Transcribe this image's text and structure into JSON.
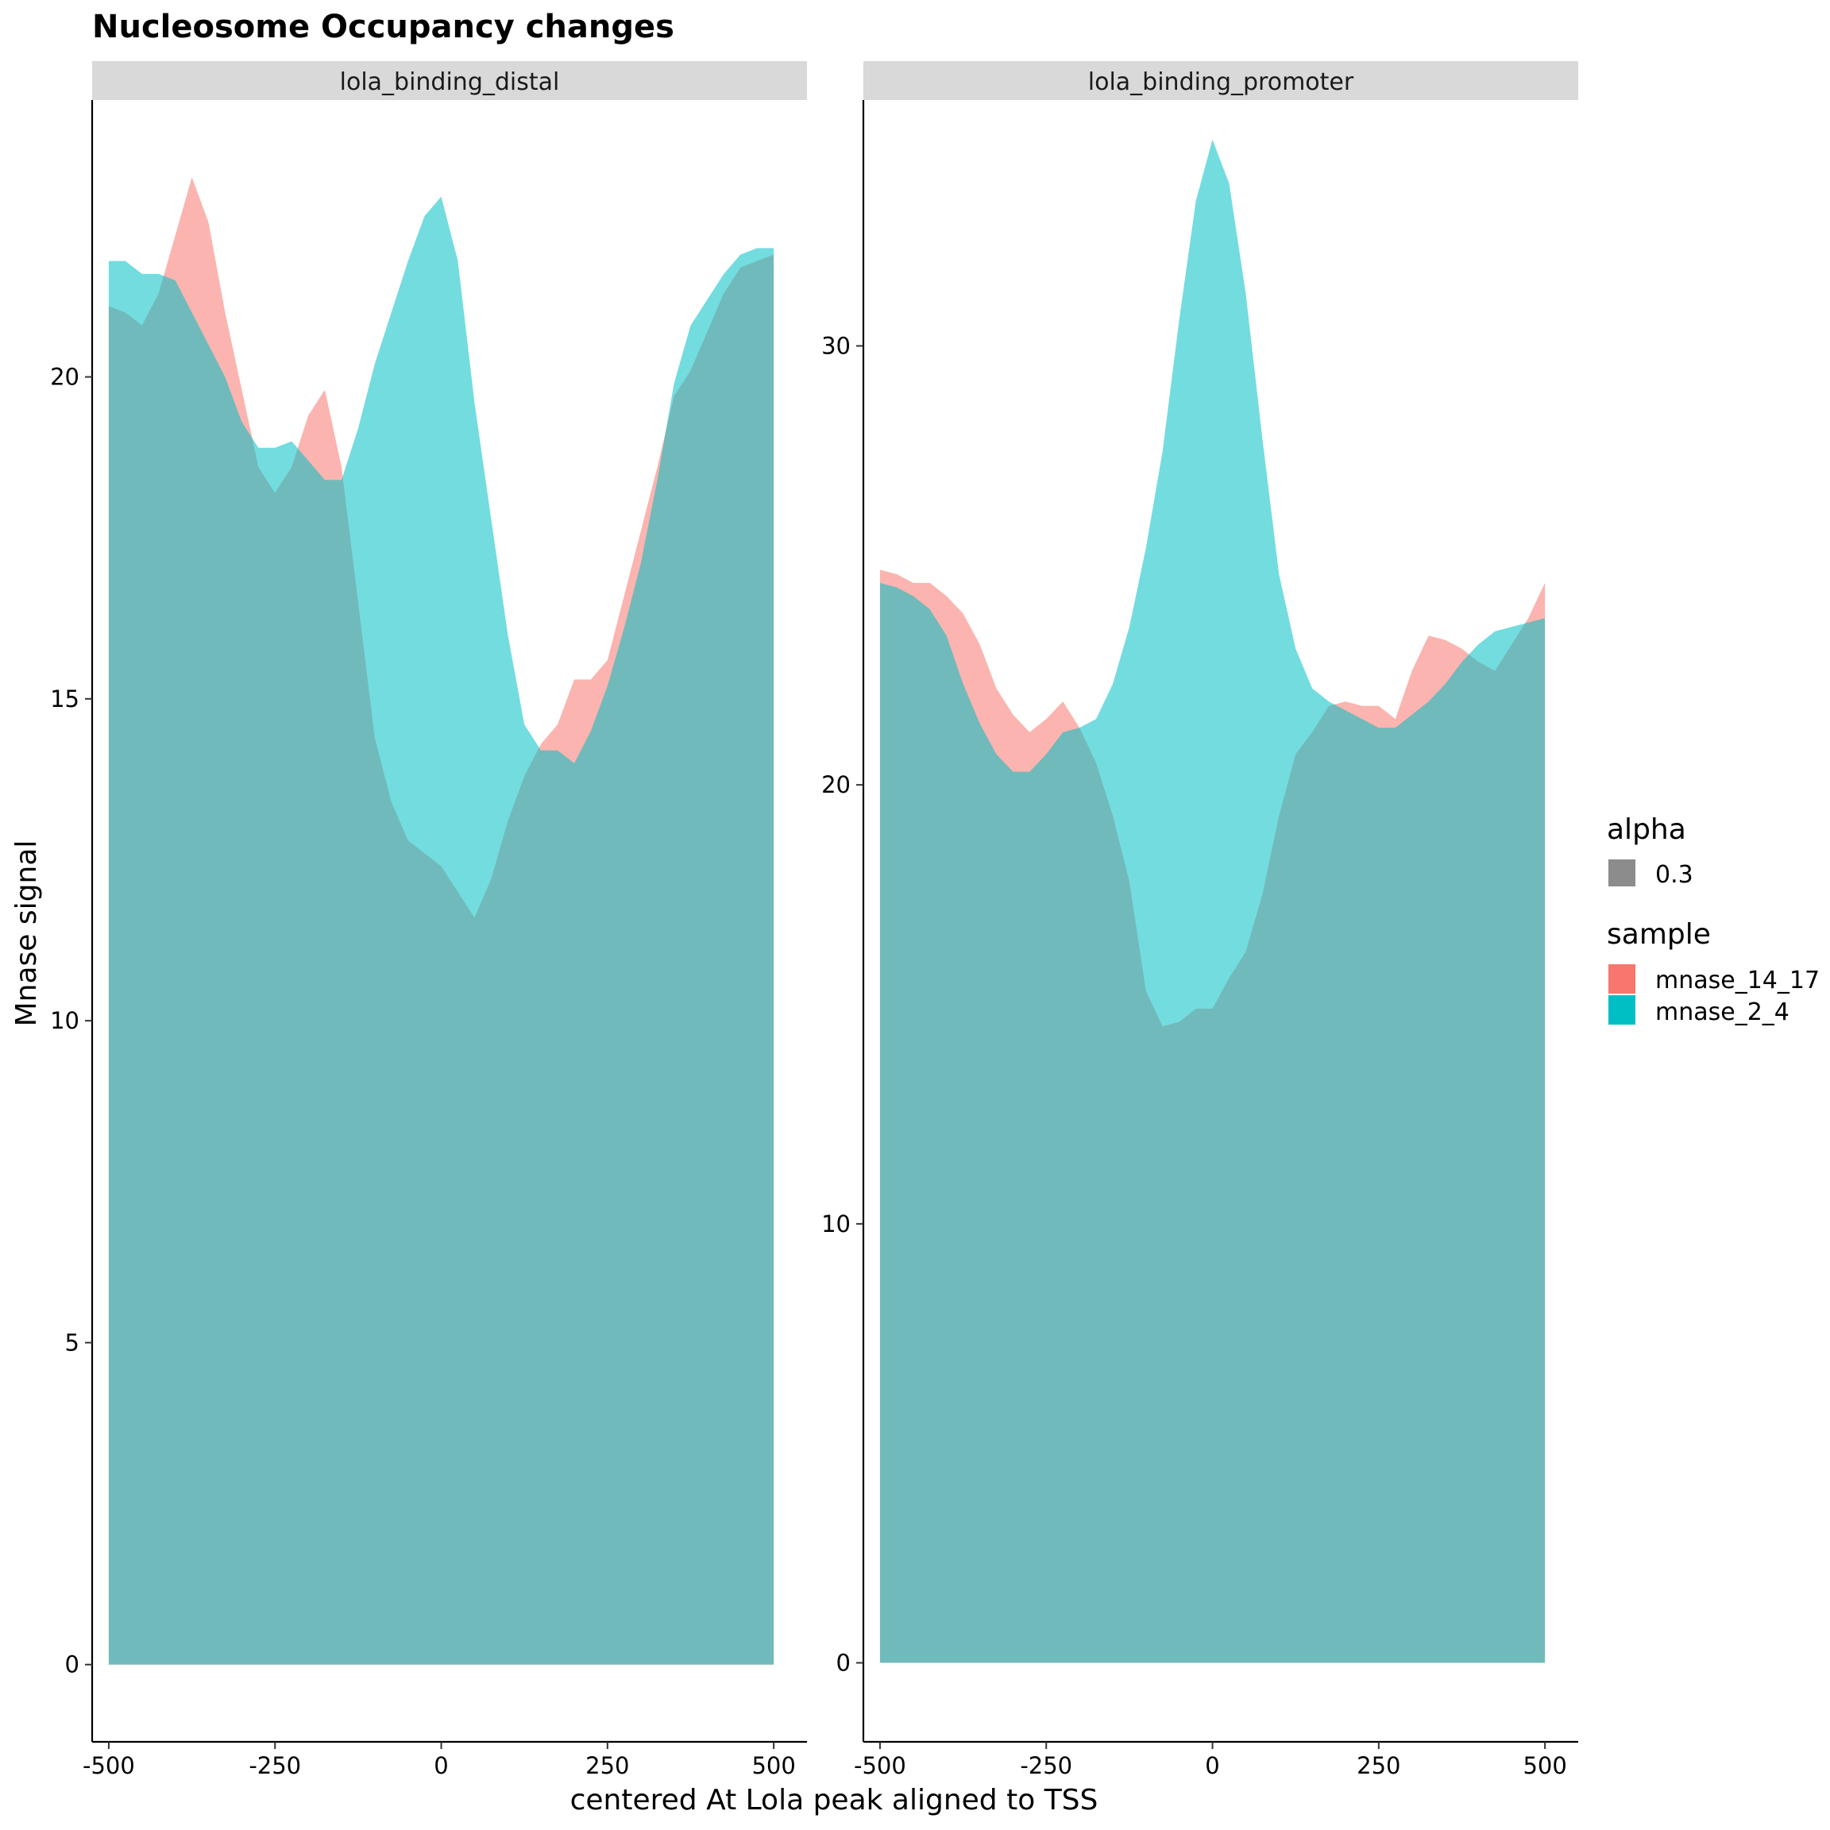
{
  "chart_data": {
    "type": "area",
    "title": "Nucleosome Occupancy changes",
    "xlabel": "centered At Lola peak aligned to TSS",
    "ylabel": "Mnase signal",
    "x_ticks": [
      "-500",
      "-250",
      "0",
      "250",
      "500"
    ],
    "x_tick_values": [
      -500,
      -250,
      0,
      250,
      500
    ],
    "grid": false,
    "legend_position": "right",
    "legend": {
      "alpha": {
        "title": "alpha",
        "entries": [
          {
            "label": "0.3",
            "color": "#8C8C8C"
          }
        ]
      },
      "sample": {
        "title": "sample",
        "entries": [
          {
            "label": "mnase_14_17",
            "color": "#F8766D"
          },
          {
            "label": "mnase_2_4",
            "color": "#00BFC4"
          }
        ]
      }
    },
    "panels": [
      {
        "strip": "lola_binding_distal",
        "xlim": [
          -525,
          550
        ],
        "ylim": [
          -1.2,
          24.3
        ],
        "y_ticks": [
          "0",
          "5",
          "10",
          "15",
          "20"
        ],
        "y_tick_values": [
          0,
          5,
          10,
          15,
          20
        ],
        "series": [
          {
            "name": "mnase_14_17",
            "color": "#F8766D",
            "x": [
              -500,
              -475,
              -450,
              -425,
              -400,
              -375,
              -350,
              -325,
              -300,
              -275,
              -250,
              -225,
              -200,
              -175,
              -150,
              -125,
              -100,
              -75,
              -50,
              -25,
              0,
              25,
              50,
              75,
              100,
              125,
              150,
              175,
              200,
              225,
              250,
              275,
              300,
              325,
              350,
              375,
              400,
              425,
              450,
              475,
              500
            ],
            "y": [
              21.1,
              21.0,
              20.8,
              21.3,
              22.2,
              23.1,
              22.4,
              21.0,
              19.8,
              18.6,
              18.2,
              18.6,
              19.4,
              19.8,
              18.6,
              16.5,
              14.4,
              13.4,
              12.8,
              12.6,
              12.4,
              12.0,
              11.6,
              12.2,
              13.1,
              13.8,
              14.3,
              14.6,
              15.3,
              15.3,
              15.6,
              16.6,
              17.6,
              18.6,
              19.7,
              20.1,
              20.7,
              21.3,
              21.7,
              21.8,
              21.9
            ]
          },
          {
            "name": "mnase_2_4",
            "color": "#00BFC4",
            "x": [
              -500,
              -475,
              -450,
              -425,
              -400,
              -375,
              -350,
              -325,
              -300,
              -275,
              -250,
              -225,
              -200,
              -175,
              -150,
              -125,
              -100,
              -75,
              -50,
              -25,
              0,
              25,
              50,
              75,
              100,
              125,
              150,
              175,
              200,
              225,
              250,
              275,
              300,
              325,
              350,
              375,
              400,
              425,
              450,
              475,
              500
            ],
            "y": [
              21.8,
              21.8,
              21.6,
              21.6,
              21.5,
              21.0,
              20.5,
              20.0,
              19.3,
              18.9,
              18.9,
              19.0,
              18.7,
              18.4,
              18.4,
              19.2,
              20.2,
              21.0,
              21.8,
              22.5,
              22.8,
              21.8,
              19.6,
              17.8,
              16.0,
              14.6,
              14.2,
              14.2,
              14.0,
              14.5,
              15.2,
              16.1,
              17.1,
              18.4,
              19.9,
              20.8,
              21.2,
              21.6,
              21.9,
              22.0,
              22.0
            ]
          }
        ]
      },
      {
        "strip": "lola_binding_promoter",
        "xlim": [
          -525,
          550
        ],
        "ylim": [
          -1.8,
          35.6
        ],
        "y_ticks": [
          "0",
          "10",
          "20",
          "30"
        ],
        "y_tick_values": [
          0,
          10,
          20,
          30
        ],
        "series": [
          {
            "name": "mnase_14_17",
            "color": "#F8766D",
            "x": [
              -500,
              -475,
              -450,
              -425,
              -400,
              -375,
              -350,
              -325,
              -300,
              -275,
              -250,
              -225,
              -200,
              -175,
              -150,
              -125,
              -100,
              -75,
              -50,
              -25,
              0,
              25,
              50,
              75,
              100,
              125,
              150,
              175,
              200,
              225,
              250,
              275,
              300,
              325,
              350,
              375,
              400,
              425,
              450,
              475,
              500
            ],
            "y": [
              24.9,
              24.8,
              24.6,
              24.6,
              24.3,
              23.9,
              23.2,
              22.2,
              21.6,
              21.2,
              21.5,
              21.9,
              21.3,
              20.5,
              19.3,
              17.8,
              15.3,
              14.5,
              14.6,
              14.9,
              14.9,
              15.6,
              16.2,
              17.5,
              19.3,
              20.7,
              21.2,
              21.8,
              21.9,
              21.8,
              21.8,
              21.5,
              22.6,
              23.4,
              23.3,
              23.1,
              22.8,
              22.6,
              23.2,
              23.8,
              24.6
            ]
          },
          {
            "name": "mnase_2_4",
            "color": "#00BFC4",
            "x": [
              -500,
              -475,
              -450,
              -425,
              -400,
              -375,
              -350,
              -325,
              -300,
              -275,
              -250,
              -225,
              -200,
              -175,
              -150,
              -125,
              -100,
              -75,
              -50,
              -25,
              0,
              25,
              50,
              75,
              100,
              125,
              150,
              175,
              200,
              225,
              250,
              275,
              300,
              325,
              350,
              375,
              400,
              425,
              450,
              475,
              500
            ],
            "y": [
              24.6,
              24.5,
              24.3,
              24.0,
              23.4,
              22.3,
              21.4,
              20.7,
              20.3,
              20.3,
              20.7,
              21.2,
              21.3,
              21.5,
              22.3,
              23.6,
              25.4,
              27.6,
              30.6,
              33.3,
              34.7,
              33.7,
              31.2,
              27.9,
              24.8,
              23.1,
              22.2,
              21.9,
              21.7,
              21.5,
              21.3,
              21.3,
              21.6,
              21.9,
              22.3,
              22.8,
              23.2,
              23.5,
              23.6,
              23.7,
              23.8
            ]
          }
        ]
      }
    ]
  }
}
